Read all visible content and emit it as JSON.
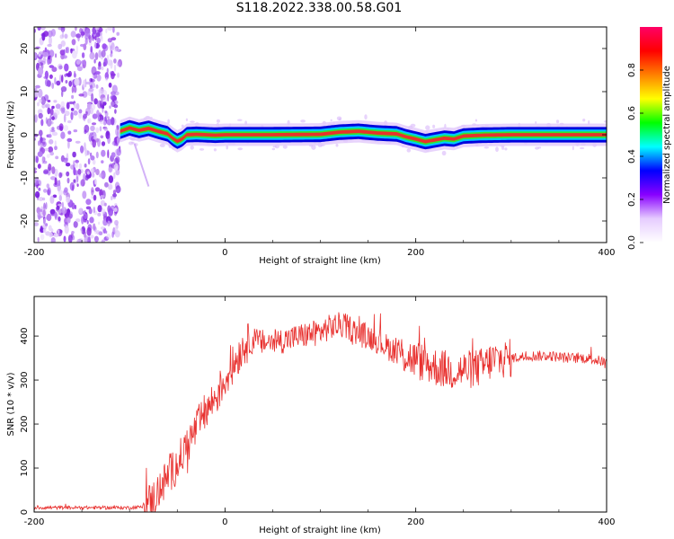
{
  "title": "S118.2022.338.00.58.G01",
  "colors": {
    "snr_line": "#e8302e",
    "ridge_core": "#e8332a",
    "axis": "#000000"
  },
  "chart_data": [
    {
      "type": "heatmap",
      "xlabel": "Height of straight line (km)",
      "ylabel": "Frequency (Hz)",
      "xlim": [
        -200,
        400
      ],
      "ylim": [
        -25,
        25
      ],
      "xticks": [
        "-200",
        "0",
        "200",
        "400"
      ],
      "yticks": [
        "-20",
        "-10",
        "0",
        "10",
        "20"
      ],
      "colorbar": {
        "label": "Normalized spectral amplitude",
        "ticks": [
          "0.0",
          "0.2",
          "0.4",
          "0.6",
          "0.8"
        ],
        "range": [
          0,
          1
        ],
        "colormap": [
          "#ffffff",
          "#e6ccff",
          "#8800ff",
          "#0000ff",
          "#00ffff",
          "#00ff00",
          "#ffff00",
          "#ff8000",
          "#ff0000",
          "#ff0066"
        ]
      },
      "ridge": {
        "x": [
          -110,
          -100,
          -90,
          -80,
          -70,
          -60,
          -55,
          -50,
          -45,
          -40,
          -30,
          -20,
          -10,
          0,
          50,
          100,
          120,
          140,
          160,
          180,
          190,
          200,
          210,
          220,
          230,
          240,
          250,
          270,
          300,
          350,
          400
        ],
        "freq": [
          0.8,
          1.6,
          1.0,
          1.5,
          0.8,
          0.2,
          -0.8,
          -1.5,
          -1.0,
          0.0,
          0.1,
          0.0,
          -0.1,
          0.0,
          0.0,
          0.1,
          0.6,
          0.8,
          0.4,
          0.2,
          -0.5,
          -1.0,
          -1.6,
          -1.2,
          -0.8,
          -1.0,
          -0.3,
          -0.1,
          0.0,
          0.0,
          0.0
        ]
      },
      "noise_region_x": [
        -200,
        -110
      ]
    },
    {
      "type": "line",
      "xlabel": "Height of straight line (km)",
      "ylabel": "SNR (10 * v/v)",
      "xlim": [
        -200,
        400
      ],
      "ylim": [
        0,
        490
      ],
      "xticks": [
        "-200",
        "0",
        "200",
        "400"
      ],
      "yticks": [
        "0",
        "100",
        "200",
        "300",
        "400"
      ],
      "series": [
        {
          "x": [
            -200,
            -150,
            -100,
            -85,
            -75,
            -60,
            -50,
            -40,
            -30,
            -20,
            -10,
            0,
            10,
            20,
            30,
            40,
            60,
            80,
            100,
            110,
            120,
            130,
            140,
            150,
            160,
            170,
            180,
            190,
            200,
            220,
            240,
            260,
            270,
            280,
            300,
            320,
            340,
            360,
            380,
            400
          ],
          "y": [
            10,
            10,
            10,
            12,
            30,
            80,
            110,
            150,
            190,
            230,
            260,
            300,
            340,
            380,
            390,
            385,
            390,
            400,
            410,
            420,
            425,
            420,
            405,
            400,
            390,
            375,
            365,
            355,
            345,
            330,
            320,
            325,
            330,
            345,
            350,
            355,
            355,
            350,
            350,
            340
          ]
        }
      ]
    }
  ]
}
